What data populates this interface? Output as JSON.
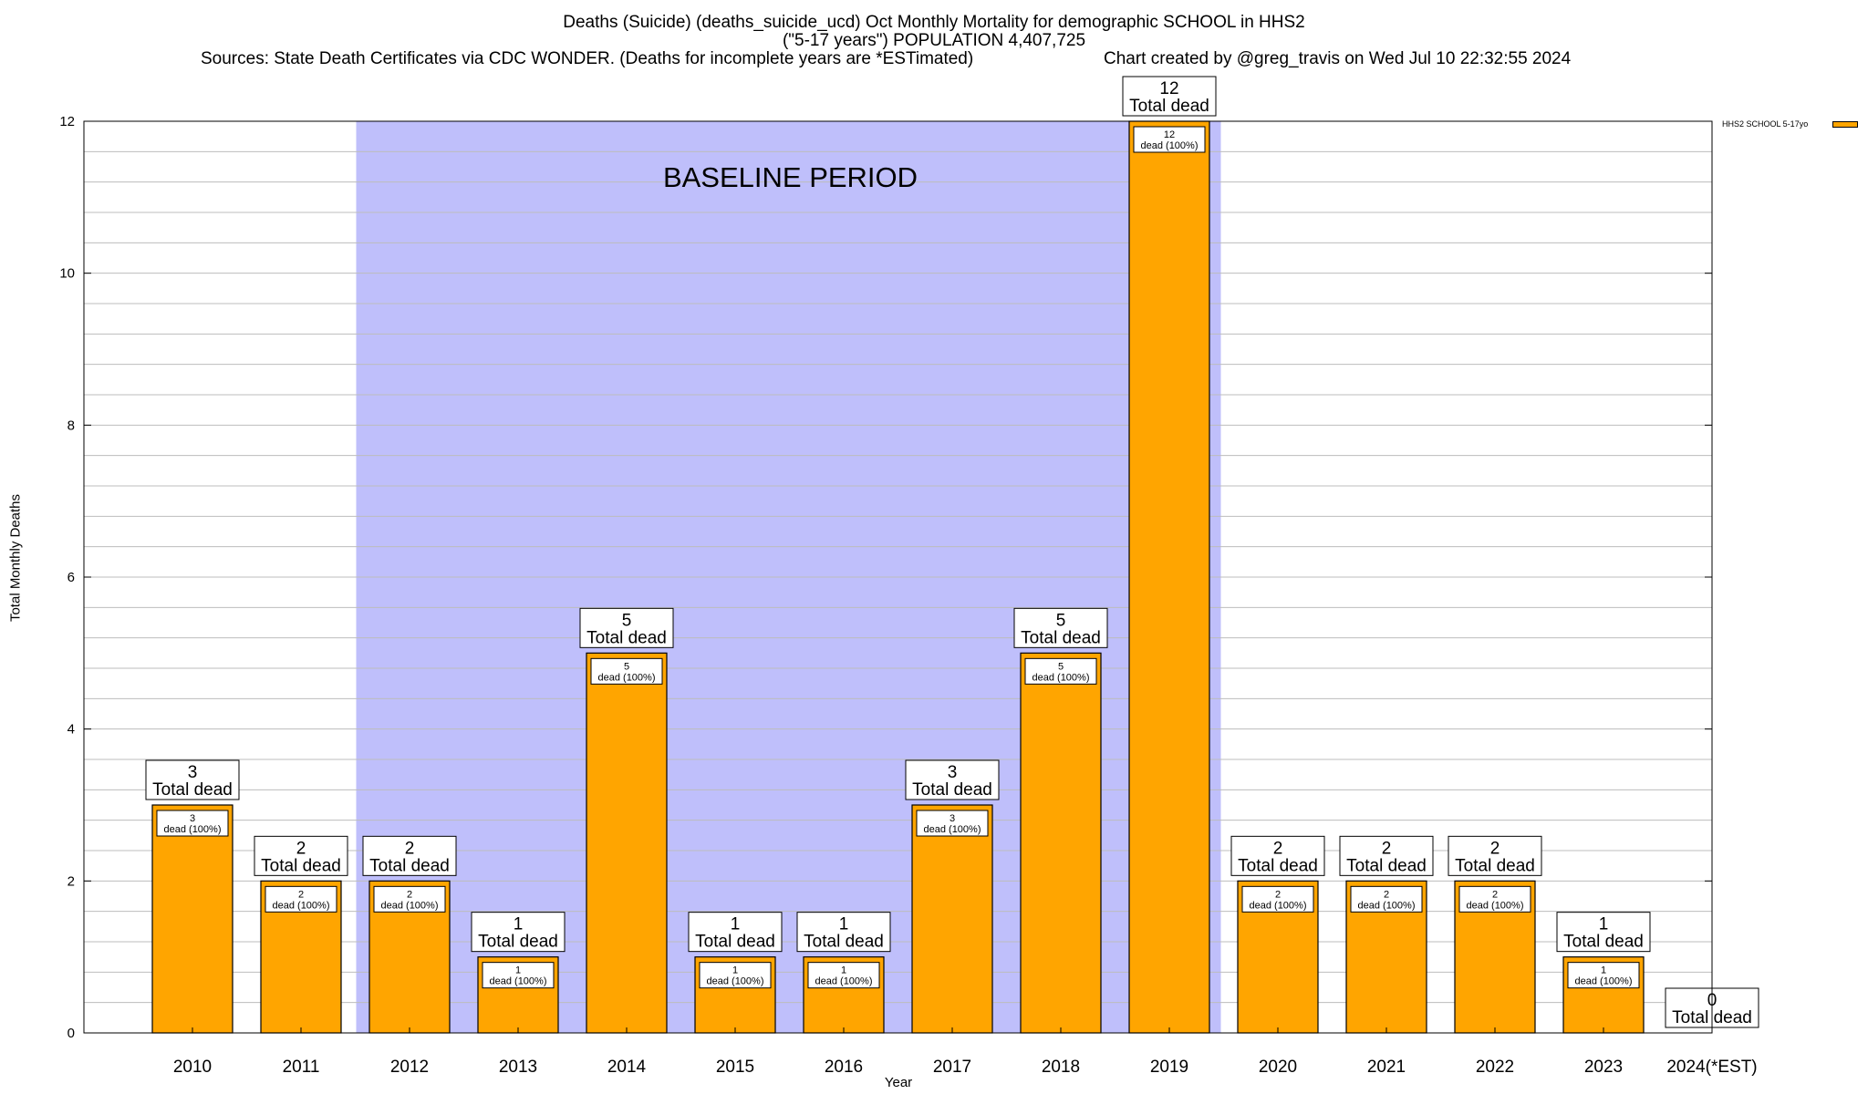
{
  "title_line1": "Deaths (Suicide) (deaths_suicide_ucd) Oct Monthly Mortality for demographic SCHOOL in HHS2",
  "title_line2": "(\"5-17 years\") POPULATION 4,407,725",
  "sources": "Sources: State Death Certificates via CDC WONDER. (Deaths for incomplete years are *ESTimated)",
  "credit": "Chart created by @greg_travis on Wed Jul 10 22:32:55 2024",
  "chart_data": {
    "type": "bar",
    "title": "Deaths (Suicide) (deaths_suicide_ucd) Oct Monthly Mortality for demographic SCHOOL in HHS2",
    "xlabel": "Year",
    "ylabel": "Total Monthly Deaths",
    "ylim": [
      0,
      12
    ],
    "yticks": [
      0,
      2,
      4,
      6,
      8,
      10,
      12
    ],
    "grid": true,
    "legend_position": "top-right",
    "categories": [
      "2010",
      "2011",
      "2012",
      "2013",
      "2014",
      "2015",
      "2016",
      "2017",
      "2018",
      "2019",
      "2020",
      "2021",
      "2022",
      "2023",
      "2024(*EST)"
    ],
    "series": [
      {
        "name": "HHS2 SCHOOL 5-17yo",
        "color": "#ffa500",
        "values": [
          3,
          2,
          2,
          1,
          5,
          1,
          1,
          3,
          5,
          12,
          2,
          2,
          2,
          1,
          0
        ]
      }
    ],
    "total_label_suffix": "Total dead",
    "inner_label_suffix": "dead (100%)",
    "baseline": {
      "label": "BASELINE PERIOD",
      "from": "2012",
      "to": "2019",
      "color": "#bfbffb"
    }
  }
}
